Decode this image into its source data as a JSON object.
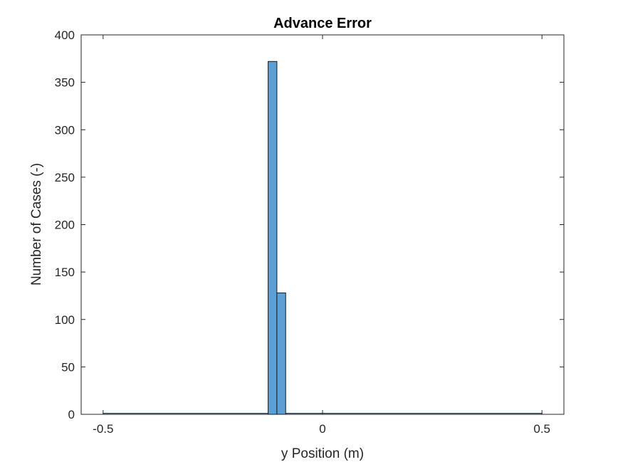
{
  "chart_data": {
    "type": "bar",
    "title": "Advance Error",
    "xlabel": "y Position (m)",
    "ylabel": "Number of Cases (-)",
    "xlim": [
      -0.55,
      0.55
    ],
    "ylim": [
      0,
      400
    ],
    "xticks": [
      -0.5,
      0,
      0.5
    ],
    "xtick_labels": [
      "-0.5",
      "0",
      "0.5"
    ],
    "yticks": [
      0,
      50,
      100,
      150,
      200,
      250,
      300,
      350,
      400
    ],
    "ytick_labels": [
      "0",
      "50",
      "100",
      "150",
      "200",
      "250",
      "300",
      "350",
      "400"
    ],
    "bins": [
      {
        "x0": -0.124,
        "x1": -0.104,
        "value": 372
      },
      {
        "x0": -0.104,
        "x1": -0.084,
        "value": 128
      }
    ],
    "baseline_range": [
      -0.5,
      0.5
    ],
    "grid": false,
    "bar_color": "#5b9fd4",
    "edge_color": "#1a1a1a"
  }
}
